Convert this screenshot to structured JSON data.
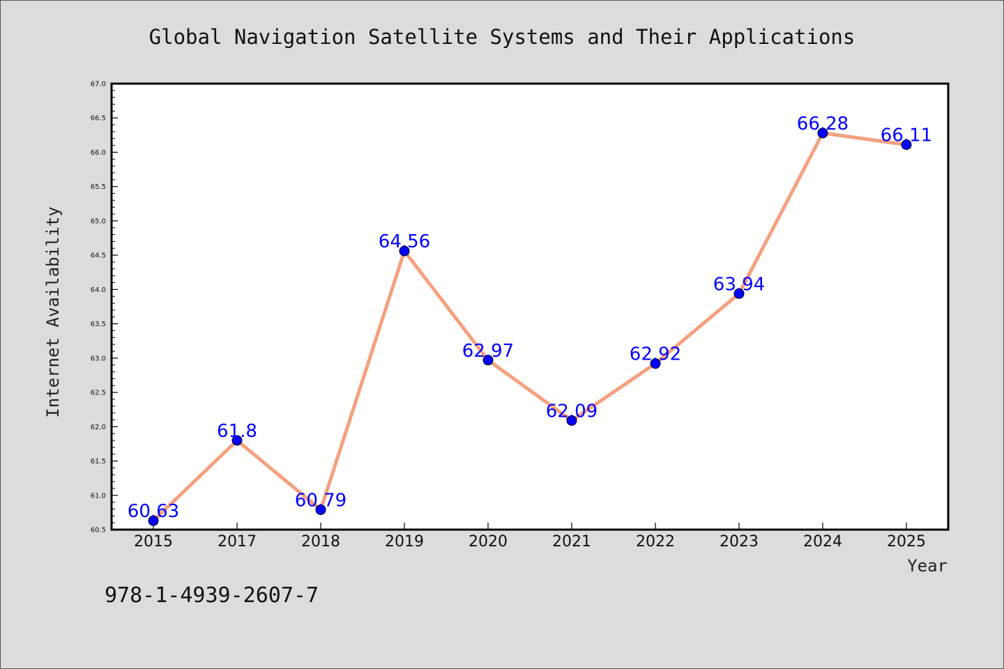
{
  "colors": {
    "background": "#dcdcdc",
    "plot_background": "#ffffff",
    "line": "#f4a07f",
    "marker": "#0000ff",
    "label": "#0000ff"
  },
  "footer": {
    "isbn": "978-1-4939-2607-7"
  },
  "chart_data": {
    "type": "line",
    "title": "Global Navigation Satellite Systems and Their Applications",
    "xlabel": "Year",
    "ylabel": "Internet Availability",
    "categories": [
      "2015",
      "2017",
      "2018",
      "2019",
      "2020",
      "2021",
      "2022",
      "2023",
      "2024",
      "2025"
    ],
    "series": [
      {
        "values": [
          60.63,
          61.8,
          60.79,
          64.56,
          62.97,
          62.09,
          62.92,
          63.94,
          66.28,
          66.11
        ]
      }
    ],
    "data_labels": [
      "60.63",
      "61.8",
      "60.79",
      "64.56",
      "62.97",
      "62.09",
      "62.92",
      "63.94",
      "66.28",
      "66.11"
    ],
    "yticks": [
      "60.5",
      "61.0",
      "61.5",
      "62.0",
      "62.5",
      "63.0",
      "63.5",
      "64.0",
      "64.5",
      "65.0",
      "65.5",
      "66.0",
      "66.5",
      "67.0"
    ],
    "ylim": [
      60.5,
      67.0
    ],
    "grid": false,
    "legend": "none"
  }
}
